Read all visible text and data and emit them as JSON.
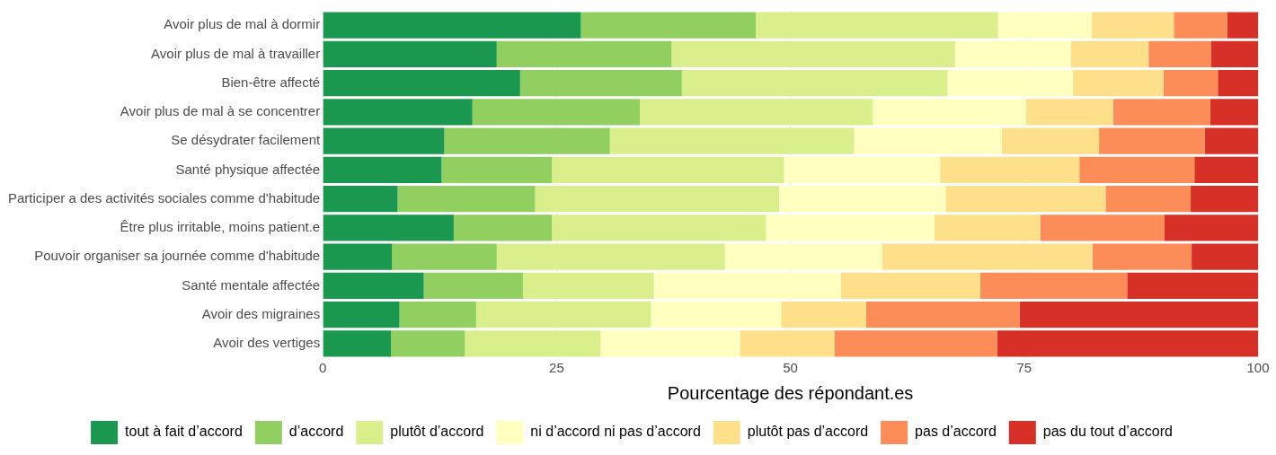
{
  "chart_data": {
    "type": "bar",
    "orientation": "horizontal",
    "stacked": true,
    "xlabel": "Pourcentage des répondant.es",
    "categories": [
      "Avoir plus de mal à dormir",
      "Avoir plus de mal à travailler",
      "Bien-être affecté",
      "Avoir plus de mal à se concentrer",
      "Se désydrater facilement",
      "Santé physique affectée",
      "Participer a des activités sociales comme d'habitude",
      "Être plus irritable, moins patient.e",
      "Pouvoir organiser sa journée comme d'habitude",
      "Santé mentale affectée",
      "Avoir des migraines",
      "Avoir des vertiges"
    ],
    "series": [
      {
        "name": "tout à fait d’accord",
        "color": "#1a9850",
        "values": [
          27.6,
          18.6,
          21.1,
          16.0,
          13.0,
          12.7,
          8.0,
          14.0,
          7.4,
          10.8,
          8.2,
          7.3
        ]
      },
      {
        "name": "d’accord",
        "color": "#91cf60",
        "values": [
          18.7,
          18.7,
          17.3,
          17.9,
          17.7,
          11.8,
          14.7,
          10.5,
          11.2,
          10.6,
          8.2,
          7.9
        ]
      },
      {
        "name": "plutôt d’accord",
        "color": "#d9ef8b",
        "values": [
          25.9,
          30.3,
          28.4,
          24.9,
          26.1,
          24.8,
          26.1,
          22.9,
          24.4,
          14.0,
          18.7,
          14.5
        ]
      },
      {
        "name": "ni d’accord ni pas d’accord",
        "color": "#ffffbf",
        "values": [
          10.0,
          12.4,
          13.4,
          16.4,
          15.8,
          16.7,
          17.8,
          18.0,
          16.8,
          20.0,
          13.9,
          14.9
        ]
      },
      {
        "name": "plutôt pas d’accord",
        "color": "#fee08b",
        "values": [
          8.8,
          8.3,
          9.7,
          9.3,
          10.4,
          14.9,
          17.1,
          11.3,
          22.5,
          14.9,
          9.1,
          10.1
        ]
      },
      {
        "name": "pas d’accord",
        "color": "#fc8d59",
        "values": [
          5.7,
          6.7,
          5.8,
          10.4,
          11.3,
          12.3,
          9.1,
          13.3,
          10.6,
          15.7,
          16.4,
          17.4
        ]
      },
      {
        "name": "pas du tout d’accord",
        "color": "#d73027",
        "values": [
          3.3,
          5.0,
          4.3,
          5.1,
          5.7,
          6.8,
          7.2,
          10.0,
          7.1,
          14.0,
          25.5,
          27.9
        ]
      }
    ],
    "xlim": [
      0,
      100
    ],
    "xticks": [
      0,
      25,
      50,
      75,
      100
    ],
    "grid": "x",
    "legend": "bottom"
  }
}
